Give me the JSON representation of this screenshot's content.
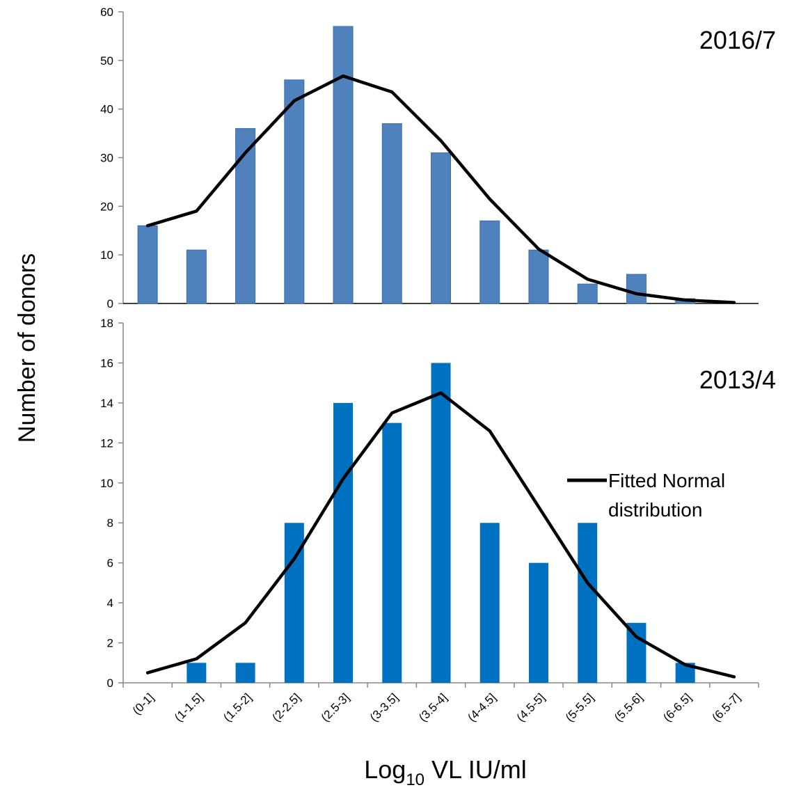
{
  "chart_data": {
    "type": "bar",
    "categories": [
      "(0-1]",
      "(1-1.5]",
      "(1.5-2]",
      "(2-2.5]",
      "(2.5-3]",
      "(3-3.5]",
      "(3.5-4]",
      "(4-4.5]",
      "(4.5-5]",
      "(5-5.5]",
      "(5.5-6]",
      "(6-6.5]",
      "(6.5-7]"
    ],
    "ylabel": "Number of donors",
    "xlabel": {
      "base": "Log",
      "sub": "10",
      "rest": " VL IU/ml"
    },
    "legend": {
      "label_line1": "Fitted Normal",
      "label_line2": "distribution",
      "position": "right",
      "line_color": "#000000"
    },
    "panels": [
      {
        "title": "2016/7",
        "ylim": [
          0,
          60
        ],
        "yticks": [
          0,
          10,
          20,
          30,
          40,
          50,
          60
        ],
        "bar_color": "#4f81bd",
        "bar_values": [
          16,
          11,
          36,
          46,
          57,
          37,
          31,
          17,
          11,
          4,
          6,
          1,
          0
        ],
        "fit_values": [
          16,
          19,
          31,
          41.7,
          46.8,
          43.5,
          33.5,
          21.5,
          11.2,
          5,
          2,
          0.7,
          0.2
        ]
      },
      {
        "title": "2013/4",
        "ylim": [
          0,
          18
        ],
        "yticks": [
          0,
          2,
          4,
          6,
          8,
          10,
          12,
          14,
          16,
          18
        ],
        "bar_color": "#0070c0",
        "bar_values": [
          0,
          1,
          1,
          8,
          14,
          13,
          16,
          8,
          6,
          8,
          3,
          1,
          0
        ],
        "fit_values": [
          0.5,
          1.2,
          3,
          6.2,
          10.2,
          13.5,
          14.5,
          12.6,
          8.8,
          5,
          2.3,
          0.9,
          0.3
        ]
      }
    ]
  }
}
